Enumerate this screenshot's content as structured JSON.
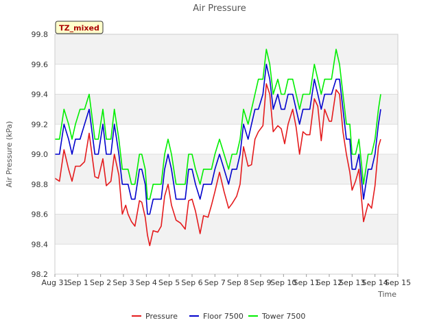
{
  "chart_data": {
    "type": "line",
    "title": "Air Pressure",
    "xlabel": "Time",
    "ylabel": "Air Pressure (kPa)",
    "annotation": "TZ_mixed",
    "x_ticks": [
      "Aug 31",
      "Sep 1",
      "Sep 2",
      "Sep 3",
      "Sep 4",
      "Sep 5",
      "Sep 6",
      "Sep 7",
      "Sep 8",
      "Sep 9",
      "Sep 10",
      "Sep 11",
      "Sep 12",
      "Sep 13",
      "Sep 14",
      "Sep 15"
    ],
    "xlim": [
      0,
      15
    ],
    "ylim": [
      98.2,
      99.8
    ],
    "y_ticks": [
      "98.2",
      "98.4",
      "98.6",
      "98.8",
      "99.0",
      "99.2",
      "99.4",
      "99.6",
      "99.8"
    ],
    "legend_position": "bottom",
    "grid": true,
    "x_unit": "days after Aug 31",
    "series": [
      {
        "name": "Pressure",
        "color": "#e41a1c",
        "x": [
          0.0,
          0.2,
          0.4,
          0.6,
          0.75,
          0.9,
          1.1,
          1.3,
          1.5,
          1.75,
          1.9,
          2.1,
          2.25,
          2.45,
          2.6,
          2.8,
          2.95,
          3.1,
          3.2,
          3.35,
          3.5,
          3.7,
          3.8,
          3.95,
          4.05,
          4.15,
          4.3,
          4.5,
          4.65,
          4.8,
          4.95,
          5.1,
          5.3,
          5.5,
          5.7,
          5.85,
          6.0,
          6.15,
          6.35,
          6.5,
          6.7,
          6.85,
          7.0,
          7.2,
          7.4,
          7.6,
          7.75,
          7.95,
          8.1,
          8.25,
          8.45,
          8.6,
          8.75,
          8.9,
          9.1,
          9.25,
          9.4,
          9.55,
          9.75,
          9.9,
          10.05,
          10.2,
          10.4,
          10.55,
          10.7,
          10.85,
          11.0,
          11.15,
          11.35,
          11.5,
          11.65,
          11.8,
          12.0,
          12.1,
          12.3,
          12.45,
          12.6,
          12.75,
          12.9,
          13.0,
          13.15,
          13.3,
          13.5,
          13.7,
          13.85,
          14.0,
          14.15,
          14.25
        ],
        "y": [
          98.84,
          98.82,
          99.03,
          98.9,
          98.82,
          98.92,
          98.92,
          98.95,
          99.14,
          98.85,
          98.84,
          98.97,
          98.79,
          98.82,
          99.0,
          98.86,
          98.6,
          98.66,
          98.6,
          98.55,
          98.52,
          98.69,
          98.68,
          98.58,
          98.46,
          98.39,
          98.49,
          98.48,
          98.52,
          98.72,
          98.8,
          98.66,
          98.56,
          98.54,
          98.5,
          98.69,
          98.7,
          98.62,
          98.47,
          98.59,
          98.58,
          98.66,
          98.75,
          98.88,
          98.75,
          98.64,
          98.67,
          98.72,
          98.8,
          99.05,
          98.92,
          98.93,
          99.1,
          99.15,
          99.19,
          99.47,
          99.4,
          99.15,
          99.19,
          99.17,
          99.07,
          99.2,
          99.3,
          99.18,
          99.0,
          99.15,
          99.13,
          99.13,
          99.37,
          99.32,
          99.09,
          99.3,
          99.22,
          99.22,
          99.43,
          99.4,
          99.15,
          99.0,
          98.88,
          98.76,
          98.82,
          98.9,
          98.55,
          98.67,
          98.64,
          98.79,
          99.05,
          99.1
        ]
      },
      {
        "name": "Floor 7500",
        "color": "#0000cc",
        "x": [
          0.0,
          0.2,
          0.4,
          0.6,
          0.75,
          0.9,
          1.1,
          1.3,
          1.5,
          1.75,
          1.9,
          2.1,
          2.25,
          2.45,
          2.6,
          2.8,
          2.95,
          3.1,
          3.2,
          3.35,
          3.5,
          3.7,
          3.8,
          3.95,
          4.05,
          4.15,
          4.3,
          4.5,
          4.65,
          4.8,
          4.95,
          5.1,
          5.3,
          5.5,
          5.7,
          5.85,
          6.0,
          6.15,
          6.35,
          6.5,
          6.7,
          6.85,
          7.0,
          7.2,
          7.4,
          7.6,
          7.75,
          7.95,
          8.1,
          8.25,
          8.45,
          8.6,
          8.75,
          8.9,
          9.1,
          9.25,
          9.4,
          9.55,
          9.75,
          9.9,
          10.05,
          10.2,
          10.4,
          10.55,
          10.7,
          10.85,
          11.0,
          11.15,
          11.35,
          11.5,
          11.65,
          11.8,
          12.0,
          12.1,
          12.3,
          12.45,
          12.6,
          12.75,
          12.9,
          13.0,
          13.15,
          13.3,
          13.5,
          13.7,
          13.85,
          14.0,
          14.15,
          14.25
        ],
        "y": [
          99.0,
          99.0,
          99.2,
          99.1,
          99.0,
          99.1,
          99.1,
          99.2,
          99.3,
          99.0,
          99.0,
          99.2,
          99.0,
          99.0,
          99.2,
          99.0,
          98.8,
          98.8,
          98.8,
          98.7,
          98.7,
          98.9,
          98.9,
          98.8,
          98.6,
          98.6,
          98.7,
          98.7,
          98.7,
          98.9,
          99.0,
          98.9,
          98.7,
          98.7,
          98.7,
          98.9,
          98.9,
          98.8,
          98.7,
          98.8,
          98.8,
          98.8,
          98.9,
          99.0,
          98.9,
          98.8,
          98.9,
          98.9,
          99.0,
          99.2,
          99.1,
          99.2,
          99.3,
          99.3,
          99.4,
          99.6,
          99.5,
          99.3,
          99.4,
          99.3,
          99.3,
          99.4,
          99.4,
          99.3,
          99.2,
          99.3,
          99.3,
          99.3,
          99.5,
          99.4,
          99.3,
          99.4,
          99.4,
          99.4,
          99.5,
          99.5,
          99.3,
          99.1,
          99.1,
          98.9,
          98.9,
          99.0,
          98.7,
          98.9,
          98.9,
          99.0,
          99.2,
          99.3
        ]
      },
      {
        "name": "Tower 7500",
        "color": "#00ee00",
        "x": [
          0.0,
          0.2,
          0.4,
          0.6,
          0.75,
          0.9,
          1.1,
          1.3,
          1.5,
          1.75,
          1.9,
          2.1,
          2.25,
          2.45,
          2.6,
          2.8,
          2.95,
          3.1,
          3.2,
          3.35,
          3.5,
          3.7,
          3.8,
          3.95,
          4.05,
          4.15,
          4.3,
          4.5,
          4.65,
          4.8,
          4.95,
          5.1,
          5.3,
          5.5,
          5.7,
          5.85,
          6.0,
          6.15,
          6.35,
          6.5,
          6.7,
          6.85,
          7.0,
          7.2,
          7.4,
          7.6,
          7.75,
          7.95,
          8.1,
          8.25,
          8.45,
          8.6,
          8.75,
          8.9,
          9.1,
          9.25,
          9.4,
          9.55,
          9.75,
          9.9,
          10.05,
          10.2,
          10.4,
          10.55,
          10.7,
          10.85,
          11.0,
          11.15,
          11.35,
          11.5,
          11.65,
          11.8,
          12.0,
          12.1,
          12.3,
          12.45,
          12.6,
          12.75,
          12.9,
          13.0,
          13.15,
          13.3,
          13.5,
          13.7,
          13.85,
          14.0,
          14.15,
          14.25
        ],
        "y": [
          99.1,
          99.1,
          99.3,
          99.2,
          99.1,
          99.2,
          99.3,
          99.3,
          99.4,
          99.1,
          99.1,
          99.3,
          99.1,
          99.1,
          99.3,
          99.1,
          98.9,
          98.9,
          98.9,
          98.8,
          98.8,
          99.0,
          99.0,
          98.9,
          98.7,
          98.7,
          98.8,
          98.8,
          98.8,
          99.0,
          99.1,
          99.0,
          98.8,
          98.8,
          98.8,
          99.0,
          99.0,
          98.9,
          98.8,
          98.9,
          98.9,
          98.9,
          99.0,
          99.1,
          99.0,
          98.9,
          99.0,
          99.0,
          99.1,
          99.3,
          99.2,
          99.3,
          99.4,
          99.5,
          99.5,
          99.7,
          99.6,
          99.4,
          99.5,
          99.4,
          99.4,
          99.5,
          99.5,
          99.4,
          99.3,
          99.4,
          99.4,
          99.4,
          99.6,
          99.5,
          99.4,
          99.5,
          99.5,
          99.5,
          99.7,
          99.6,
          99.4,
          99.2,
          99.2,
          99.0,
          99.0,
          99.1,
          98.8,
          99.0,
          99.0,
          99.1,
          99.3,
          99.4
        ]
      }
    ]
  }
}
